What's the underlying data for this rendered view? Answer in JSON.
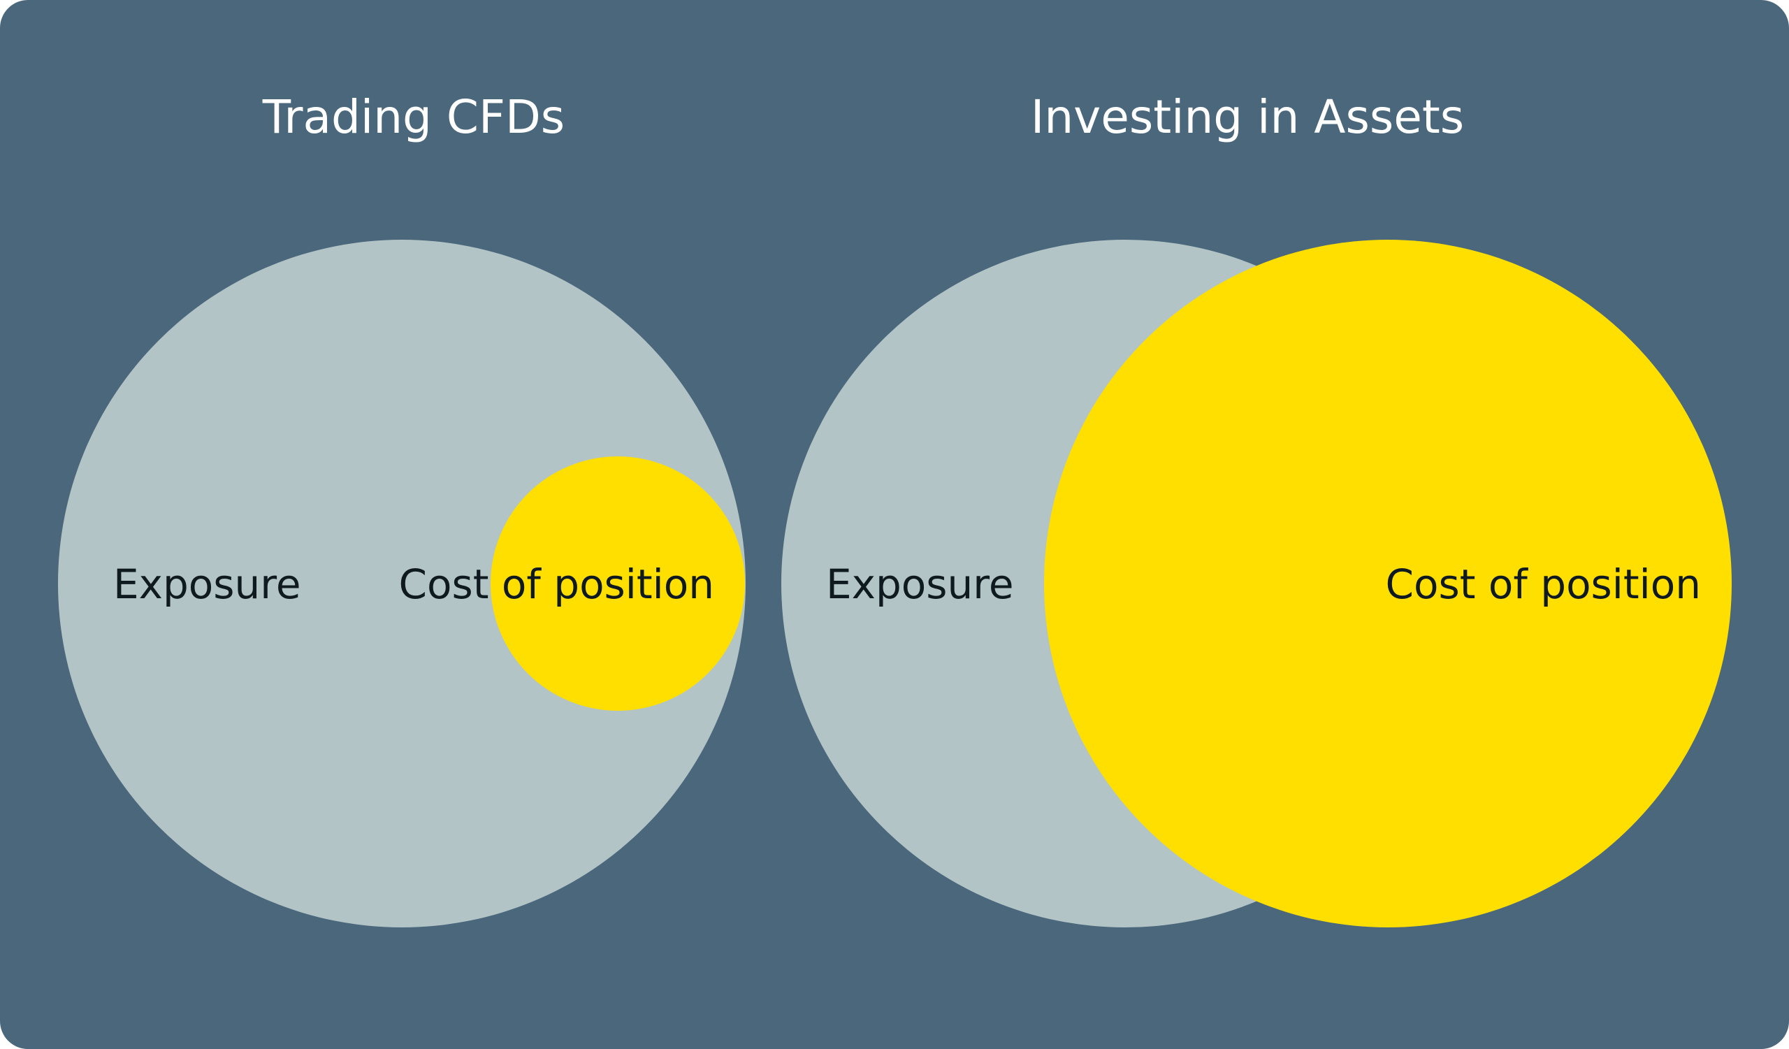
{
  "colors": {
    "background": "#4a677c",
    "exposure_circle": "#b3c4c6",
    "cost_circle": "#ffdf00",
    "title_text": "#ffffff",
    "label_text": "#0f1a20"
  },
  "panels": [
    {
      "title": "Trading CFDs",
      "exposure_label": "Exposure",
      "cost_label": "Cost of position"
    },
    {
      "title": "Investing in Assets",
      "exposure_label": "Exposure",
      "cost_label": "Cost of position"
    }
  ]
}
